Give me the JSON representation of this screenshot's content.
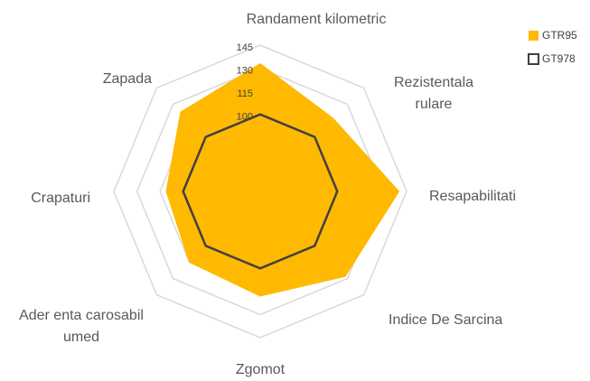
{
  "chart_data": {
    "type": "radar",
    "categories": [
      "Randament kilometric",
      "Rezistentala rulare",
      "Resapabilitati",
      "Indice De Sarcina",
      "Zgomot",
      "Ader enta carosabil umed",
      "Crapaturi",
      "Zapada"
    ],
    "series": [
      {
        "name": "GTR95",
        "color": "#ffb900",
        "fill": true,
        "values": [
          133,
          117,
          140,
          128,
          118,
          115,
          111,
          123
        ]
      },
      {
        "name": "GT978",
        "color": "#404040",
        "fill": false,
        "values": [
          100,
          100,
          100,
          100,
          100,
          100,
          100,
          100
        ]
      }
    ],
    "ylim": [
      50,
      145
    ],
    "yticks": [
      100,
      115,
      130,
      145
    ],
    "grid_rings": [
      55,
      70,
      85,
      100,
      115,
      130,
      145
    ],
    "grid": true
  }
}
